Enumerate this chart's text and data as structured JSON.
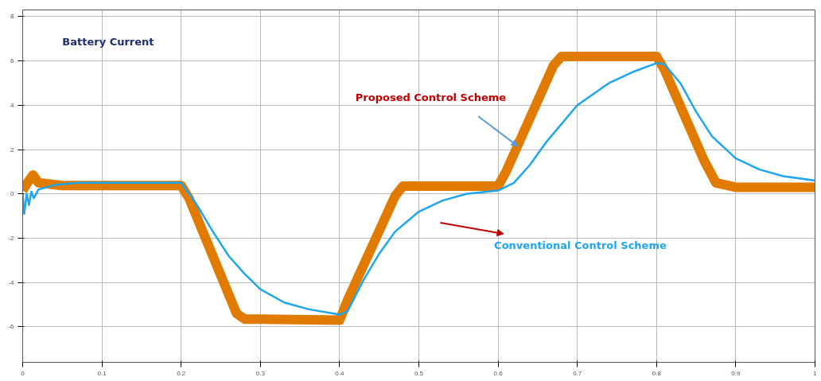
{
  "chart_data": {
    "type": "line",
    "title": "Battery Current",
    "xlim": [
      0,
      1
    ],
    "ylim": [
      -7.6,
      8.3
    ],
    "xticks": [
      0,
      0.1,
      0.2,
      0.3,
      0.4,
      0.5,
      0.6,
      0.7,
      0.8,
      0.9,
      1
    ],
    "yticks": [
      -6,
      -4,
      -2,
      0,
      2,
      4,
      6,
      8
    ],
    "grid": true,
    "marker": "none",
    "line_style": "solid",
    "series": [
      {
        "name": "Proposed Control Scheme",
        "color": "#e07b00",
        "x": [
          0,
          0.005,
          0.013,
          0.02,
          0.05,
          0.2,
          0.21,
          0.27,
          0.28,
          0.3,
          0.4,
          0.41,
          0.47,
          0.48,
          0.6,
          0.61,
          0.67,
          0.68,
          0.8,
          0.81,
          0.86,
          0.875,
          0.9,
          1
        ],
        "values": [
          0.15,
          0.45,
          0.85,
          0.5,
          0.38,
          0.38,
          -0.2,
          -5.4,
          -5.65,
          -5.65,
          -5.7,
          -4.8,
          -0.1,
          0.35,
          0.35,
          1.0,
          5.8,
          6.2,
          6.2,
          5.6,
          1.5,
          0.5,
          0.3,
          0.3
        ]
      },
      {
        "name": "Conventional Control Scheme",
        "color": "#1ea5ef",
        "x": [
          0,
          0.002,
          0.005,
          0.008,
          0.011,
          0.014,
          0.02,
          0.04,
          0.07,
          0.2,
          0.22,
          0.24,
          0.26,
          0.28,
          0.3,
          0.33,
          0.36,
          0.4,
          0.41,
          0.43,
          0.45,
          0.47,
          0.5,
          0.53,
          0.56,
          0.6,
          0.62,
          0.64,
          0.66,
          0.7,
          0.74,
          0.77,
          0.8,
          0.81,
          0.83,
          0.85,
          0.87,
          0.9,
          0.93,
          0.96,
          1
        ],
        "values": [
          0,
          -0.9,
          0,
          -0.5,
          0.1,
          -0.2,
          0.2,
          0.4,
          0.5,
          0.5,
          -0.5,
          -1.7,
          -2.8,
          -3.6,
          -4.3,
          -4.9,
          -5.2,
          -5.45,
          -5.3,
          -3.9,
          -2.7,
          -1.7,
          -0.8,
          -0.3,
          0,
          0.15,
          0.5,
          1.3,
          2.3,
          4.0,
          5.0,
          5.5,
          5.9,
          5.85,
          5.0,
          3.7,
          2.6,
          1.6,
          1.1,
          0.8,
          0.6
        ]
      }
    ]
  }
}
